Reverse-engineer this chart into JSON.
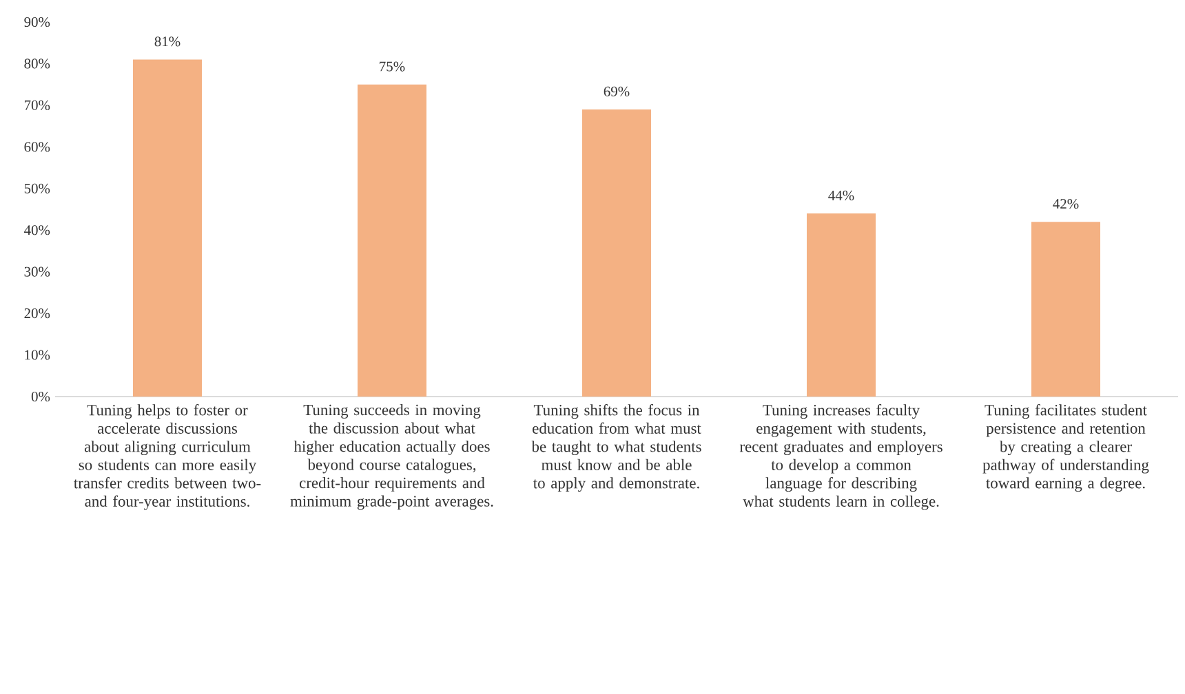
{
  "chart_data": {
    "type": "bar",
    "categories": [
      "Tuning helps to foster or accelerate discussions about aligning curriculum so students can more easily transfer credits between two- and four-year institutions.",
      "Tuning succeeds in moving the discussion about what higher education actually does beyond course catalogues, credit-hour requirements and minimum grade-point averages.",
      "Tuning shifts the focus in education from what must be taught to what students must know and be able to apply and demonstrate.",
      "Tuning increases faculty engagement with students, recent graduates and employers to develop a common language for describing what students learn in college.",
      "Tuning facilitates student persistence and retention by creating a clearer pathway of understanding toward earning a degree."
    ],
    "values": [
      81,
      75,
      69,
      44,
      42
    ],
    "value_labels": [
      "81%",
      "75%",
      "69%",
      "44%",
      "42%"
    ],
    "color": "#f4b183",
    "ylim": [
      0,
      90
    ],
    "yticks": [
      {
        "value": 0,
        "label": "0%"
      },
      {
        "value": 10,
        "label": "10%"
      },
      {
        "value": 20,
        "label": "20%"
      },
      {
        "value": 30,
        "label": "30%"
      },
      {
        "value": 40,
        "label": "40%"
      },
      {
        "value": 50,
        "label": "50%"
      },
      {
        "value": 60,
        "label": "60%"
      },
      {
        "value": 70,
        "label": "70%"
      },
      {
        "value": 80,
        "label": "80%"
      },
      {
        "value": 90,
        "label": "90%"
      }
    ]
  }
}
